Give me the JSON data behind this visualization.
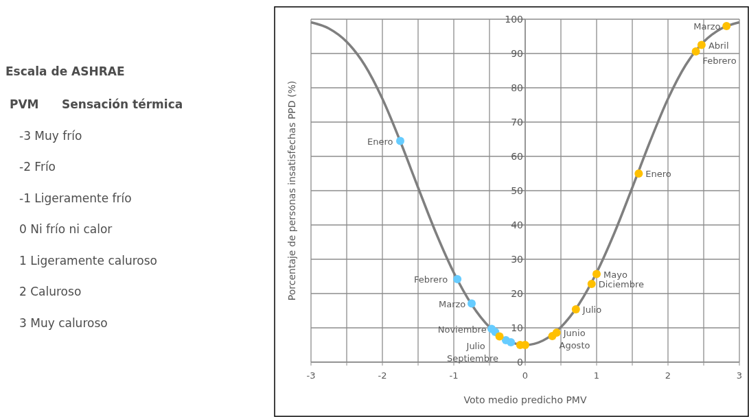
{
  "chart_data": [
    {
      "type": "other",
      "title": "Escala de ASHRAE",
      "annotations": [
        "PVM",
        "Sensación térmica",
        "-3 Muy frío",
        "-2 Frío",
        "-1 Ligeramente frío",
        "0 Ni frío ni calor",
        "1 Ligeramente caluroso",
        "2 Caluroso",
        "3 Muy caluroso"
      ]
    },
    {
      "type": "scatter",
      "xlabel": "Voto medio predicho PMV",
      "ylabel": "Porcentaje de personas insatisfechas PPD (%)",
      "xlim": [
        -3,
        3
      ],
      "ylim": [
        0,
        100
      ],
      "xticks": [
        -3,
        {
          "value": -2.5,
          "label": null
        },
        -2,
        {
          "value": -1.5,
          "label": null
        },
        -1,
        {
          "value": -0.5,
          "label": null
        },
        0,
        {
          "value": 0.5,
          "label": null
        },
        1,
        {
          "value": 1.5,
          "label": null
        },
        2,
        {
          "value": 2.5,
          "label": null
        },
        3
      ],
      "yticks": [
        0,
        10,
        20,
        30,
        40,
        50,
        60,
        70,
        80,
        90,
        100
      ],
      "grid": true,
      "marker": "circle",
      "series": [
        {
          "type": "line",
          "color": "#7f7f7f",
          "marker": "none",
          "x": [
            -3,
            -2.75,
            -2.5,
            -2.25,
            -2,
            -1.75,
            -1.5,
            -1.25,
            -1,
            -0.75,
            -0.5,
            -0.25,
            0,
            0.25,
            0.5,
            0.75,
            1,
            1.25,
            1.5,
            1.75,
            2,
            2.25,
            2.5,
            2.75,
            3
          ],
          "values": [
            99.1,
            97.3,
            93.4,
            86.7,
            76.8,
            64.4,
            50.9,
            37.7,
            26.1,
            16.8,
            10.2,
            6.3,
            5,
            6.3,
            10.2,
            16.8,
            26.1,
            37.7,
            50.9,
            64.4,
            76.8,
            86.7,
            93.4,
            97.3,
            99.1
          ]
        },
        {
          "color": "#66ccff",
          "x": [
            -1.75,
            -0.95,
            -0.75,
            -0.47,
            -0.42,
            -0.27,
            -0.2
          ],
          "values": [
            64.5,
            24.2,
            17.1,
            9.7,
            8.8,
            6.4,
            5.8
          ]
        },
        {
          "color": "#ffc000",
          "x": [
            2.82,
            2.47,
            2.39,
            1.59,
            1.0,
            0.93,
            0.71,
            0.44,
            0.38,
            -0.36,
            -0.07,
            0.0
          ],
          "values": [
            98,
            92.5,
            90.6,
            55,
            25.7,
            22.8,
            15.4,
            8.6,
            7.6,
            7.5,
            5,
            5
          ]
        }
      ],
      "annotations": [
        {
          "text": "Enero",
          "x": -1.75,
          "y": 64.5
        },
        {
          "text": "Febrero",
          "x": -0.95,
          "y": 24.2
        },
        {
          "text": "Marzo",
          "x": -0.75,
          "y": 17.1
        },
        {
          "text": "Noviembre",
          "x": -0.47,
          "y": 9.7
        },
        {
          "text": "Julio",
          "x": -0.36,
          "y": 7.5
        },
        {
          "text": "Septiembre",
          "x": -0.27,
          "y": 6.4
        },
        {
          "text": "Marzo",
          "x": 2.82,
          "y": 98
        },
        {
          "text": "Abril",
          "x": 2.47,
          "y": 92.5
        },
        {
          "text": "Febrero",
          "x": 2.39,
          "y": 90.6
        },
        {
          "text": "Enero",
          "x": 1.59,
          "y": 55
        },
        {
          "text": "Mayo",
          "x": 1.0,
          "y": 25.7
        },
        {
          "text": "Diciembre",
          "x": 0.93,
          "y": 22.8
        },
        {
          "text": "Julio",
          "x": 0.71,
          "y": 15.4
        },
        {
          "text": "Junio",
          "x": 0.44,
          "y": 8.6
        },
        {
          "text": "Agosto",
          "x": 0.38,
          "y": 7.6
        }
      ]
    }
  ]
}
